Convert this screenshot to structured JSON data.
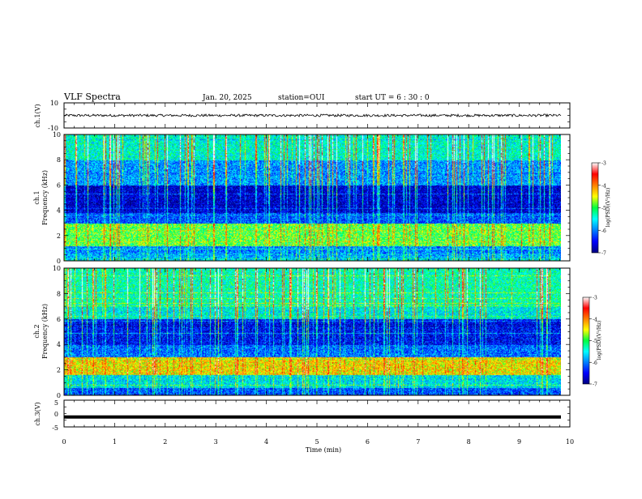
{
  "header": {
    "title": "VLF Spectra",
    "date": "Jan. 20, 2025",
    "station": "station=OUI",
    "start": "start  UT =   6 : 30 : 0"
  },
  "chart_data": [
    {
      "type": "line",
      "name": "ch1-waveform",
      "ylabel": "ch.1(V)",
      "ylim": [
        -10,
        10
      ],
      "yticks": [
        "10",
        "-10"
      ],
      "x": [
        0,
        9.83
      ],
      "y": [
        0,
        0
      ],
      "note_level": "noise around 0 V, amplitude about ±1 V"
    },
    {
      "type": "heatmap",
      "name": "ch1-spectrogram",
      "ylabel": [
        "ch.1",
        "Frequency (kHz)"
      ],
      "ylim": [
        0,
        10
      ],
      "yticks": [
        "0",
        "2",
        "4",
        "6",
        "8",
        "10"
      ],
      "xlim": [
        0,
        9.83
      ],
      "bands": [
        {
          "from": 0.0,
          "to": 0.6,
          "level": -5.8
        },
        {
          "from": 0.6,
          "to": 1.2,
          "level": -6.0
        },
        {
          "from": 1.2,
          "to": 3.0,
          "level": -4.9
        },
        {
          "from": 3.0,
          "to": 3.8,
          "level": -6.2
        },
        {
          "from": 3.8,
          "to": 6.0,
          "level": -6.7
        },
        {
          "from": 6.0,
          "to": 8.0,
          "level": -5.9
        },
        {
          "from": 8.0,
          "to": 10.0,
          "level": -5.4
        }
      ],
      "colorbar": {
        "label": "log(PSD)(V²/Hz)",
        "ticks": [
          "-3",
          "-4",
          "-5",
          "-6",
          "-7"
        ],
        "range": [
          -7,
          -3
        ]
      }
    },
    {
      "type": "heatmap",
      "name": "ch2-spectrogram",
      "ylabel": [
        "ch.2",
        "Frequency (kHz)"
      ],
      "ylim": [
        0,
        10
      ],
      "yticks": [
        "0",
        "2",
        "4",
        "6",
        "8",
        "10"
      ],
      "xlim": [
        0,
        9.83
      ],
      "bands": [
        {
          "from": 0.0,
          "to": 0.6,
          "level": -6.2
        },
        {
          "from": 0.6,
          "to": 1.6,
          "level": -5.6
        },
        {
          "from": 1.6,
          "to": 3.0,
          "level": -4.4
        },
        {
          "from": 3.0,
          "to": 4.0,
          "level": -6.1
        },
        {
          "from": 4.0,
          "to": 6.0,
          "level": -6.5
        },
        {
          "from": 6.0,
          "to": 7.0,
          "level": -5.5
        },
        {
          "from": 7.0,
          "to": 10.0,
          "level": -5.3
        }
      ],
      "colorbar": {
        "label": "log(PSD)(V²/Hz)",
        "ticks": [
          "-3",
          "-4",
          "-5",
          "-6",
          "-7"
        ],
        "range": [
          -7,
          -3
        ]
      }
    },
    {
      "type": "line",
      "name": "ch3-waveform",
      "ylabel": "ch.3(V)",
      "ylim": [
        -5,
        5
      ],
      "yticks": [
        "5",
        "0",
        "-5"
      ],
      "x": [
        0,
        9.83
      ],
      "y": [
        -1.3,
        -1.3
      ]
    }
  ],
  "xaxis": {
    "label": "Time (min)",
    "range": [
      0,
      10
    ],
    "ticks": [
      "0",
      "1",
      "2",
      "3",
      "4",
      "5",
      "6",
      "7",
      "8",
      "9",
      "10"
    ]
  },
  "colors": {
    "background": "#ffffff",
    "axis": "#000000"
  }
}
